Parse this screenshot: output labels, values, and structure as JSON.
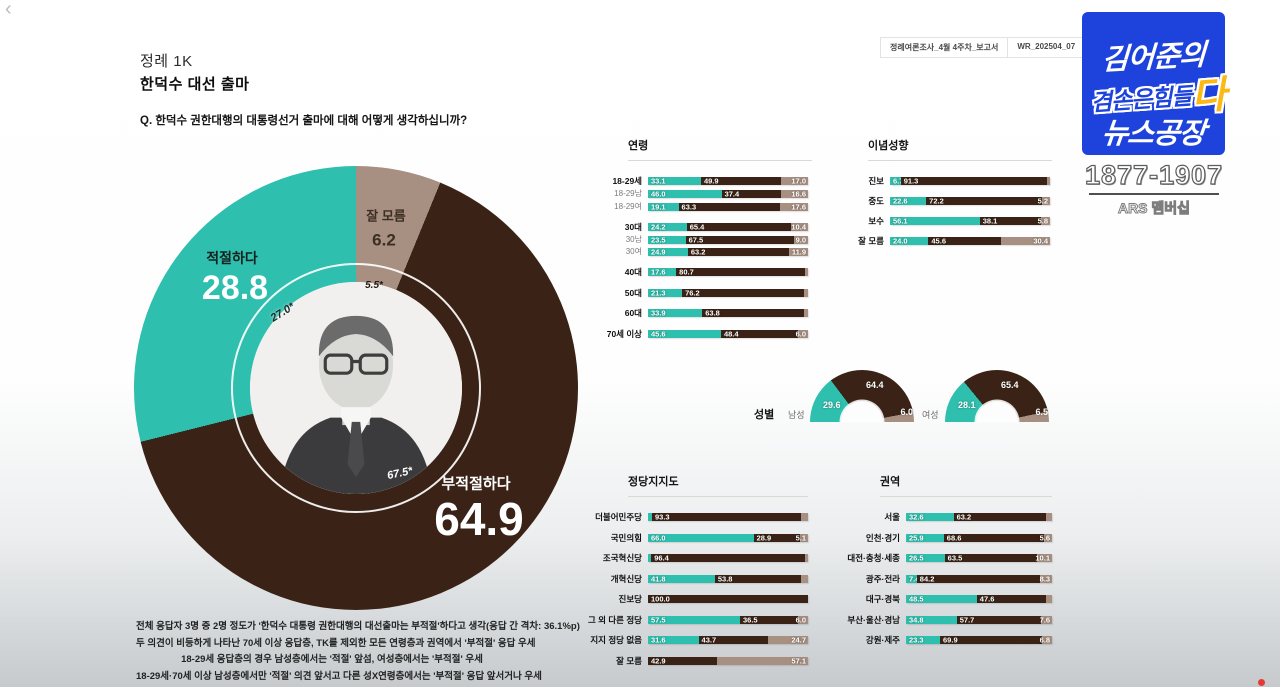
{
  "frame": {
    "back_icon": "‹",
    "report_tabs": [
      {
        "label": "정례여론조사_4월 4주차_보고서"
      },
      {
        "label": "WR_202504_07"
      }
    ]
  },
  "header": {
    "series": "정례 1K",
    "title": "한덕수 대선 출마",
    "question": "Q. 한덕수 권한대행의 대통령선거 출마에 대해 어떻게 생각하십니까?"
  },
  "colors": {
    "agree": "#2fbfae",
    "disagree": "#3a2316",
    "unsure": "#a78f81",
    "hole_bg": "#f2f1ef"
  },
  "chart_data": [
    {
      "id": "main_donut",
      "type": "pie",
      "title": "한덕수 대선 출마",
      "segments": [
        {
          "key": "agree",
          "label": "적절하다",
          "value": 28.8,
          "display": "28.8"
        },
        {
          "key": "disagree",
          "label": "부적절하다",
          "value": 64.9,
          "display": "64.9"
        },
        {
          "key": "unsure",
          "label": "잘 모름",
          "value": 6.2,
          "display": "6.2"
        }
      ],
      "inner_ring": {
        "agree": "27.0*",
        "disagree": "67.5*",
        "unsure": "5.5*"
      }
    },
    {
      "id": "age",
      "type": "bar",
      "title": "연령",
      "stacked": true,
      "series_names": [
        "적절하다",
        "부적절하다",
        "잘 모름"
      ],
      "rows": [
        {
          "label": "18-29세",
          "major": true,
          "gap": false,
          "values": [
            33.1,
            49.9,
            17.0
          ],
          "shown": [
            "33.1",
            "49.9",
            "17.0"
          ]
        },
        {
          "label": "18-29남",
          "major": false,
          "gap": false,
          "values": [
            46.0,
            37.4,
            16.6
          ],
          "shown": [
            "46.0",
            "37.4",
            "16.6"
          ]
        },
        {
          "label": "18-29여",
          "major": false,
          "gap": false,
          "values": [
            19.1,
            63.3,
            17.6
          ],
          "shown": [
            "19.1",
            "63.3",
            "17.6"
          ]
        },
        {
          "label": "30대",
          "major": true,
          "gap": true,
          "values": [
            24.2,
            65.4,
            10.4
          ],
          "shown": [
            "24.2",
            "65.4",
            "10.4"
          ]
        },
        {
          "label": "30남",
          "major": false,
          "gap": false,
          "values": [
            23.5,
            67.5,
            9.0
          ],
          "shown": [
            "23.5",
            "67.5",
            "9.0"
          ]
        },
        {
          "label": "30여",
          "major": false,
          "gap": false,
          "values": [
            24.9,
            63.2,
            11.9
          ],
          "shown": [
            "24.9",
            "63.2",
            "11.9"
          ]
        },
        {
          "label": "40대",
          "major": true,
          "gap": true,
          "values": [
            17.6,
            80.7,
            1.7
          ],
          "shown": [
            "17.6",
            "80.7",
            ""
          ]
        },
        {
          "label": "50대",
          "major": true,
          "gap": true,
          "values": [
            21.3,
            76.2,
            2.5
          ],
          "shown": [
            "21.3",
            "76.2",
            ""
          ]
        },
        {
          "label": "60대",
          "major": true,
          "gap": true,
          "values": [
            33.9,
            63.8,
            2.3
          ],
          "shown": [
            "33.9",
            "63.8",
            ""
          ]
        },
        {
          "label": "70세 이상",
          "major": true,
          "gap": true,
          "values": [
            45.6,
            48.4,
            6.0
          ],
          "shown": [
            "45.6",
            "48.4",
            "6.0"
          ]
        }
      ]
    },
    {
      "id": "ideology",
      "type": "bar",
      "title": "이념성향",
      "stacked": true,
      "series_names": [
        "적절하다",
        "부적절하다",
        "잘 모름"
      ],
      "rows": [
        {
          "label": "진보",
          "major": true,
          "gap": false,
          "values": [
            6.7,
            91.3,
            2.0
          ],
          "shown": [
            "6.7",
            "91.3",
            ""
          ]
        },
        {
          "label": "중도",
          "major": true,
          "gap": false,
          "values": [
            22.6,
            72.2,
            5.2
          ],
          "shown": [
            "22.6",
            "72.2",
            "5.2"
          ]
        },
        {
          "label": "보수",
          "major": true,
          "gap": false,
          "values": [
            56.1,
            38.1,
            5.8
          ],
          "shown": [
            "56.1",
            "38.1",
            "5.8"
          ]
        },
        {
          "label": "잘 모름",
          "major": true,
          "gap": false,
          "values": [
            24.0,
            45.6,
            30.4
          ],
          "shown": [
            "24.0",
            "45.6",
            "30.4"
          ]
        }
      ]
    },
    {
      "id": "gender",
      "type": "pie",
      "title": "성별",
      "charts": [
        {
          "label": "남성",
          "values": [
            29.6,
            64.4,
            6.0
          ],
          "shown": [
            "29.6",
            "64.4",
            "6.0"
          ]
        },
        {
          "label": "여성",
          "values": [
            28.1,
            65.4,
            6.5
          ],
          "shown": [
            "28.1",
            "65.4",
            "6.5"
          ]
        }
      ]
    },
    {
      "id": "party",
      "type": "bar",
      "title": "정당지지도",
      "stacked": true,
      "series_names": [
        "적절하다",
        "부적절하다",
        "잘 모름"
      ],
      "rows": [
        {
          "label": "더불어민주당",
          "major": true,
          "gap": false,
          "values": [
            2.5,
            93.3,
            4.2
          ],
          "shown": [
            "",
            "93.3",
            ""
          ]
        },
        {
          "label": "국민의힘",
          "major": true,
          "gap": false,
          "values": [
            66.0,
            28.9,
            5.1
          ],
          "shown": [
            "66.0",
            "28.9",
            "5.1"
          ]
        },
        {
          "label": "조국혁신당",
          "major": true,
          "gap": false,
          "values": [
            2.0,
            96.4,
            1.6
          ],
          "shown": [
            "",
            "96.4",
            ""
          ]
        },
        {
          "label": "개혁신당",
          "major": true,
          "gap": false,
          "values": [
            41.8,
            53.8,
            4.4
          ],
          "shown": [
            "41.8",
            "53.8",
            ""
          ]
        },
        {
          "label": "진보당",
          "major": true,
          "gap": false,
          "values": [
            0,
            100.0,
            0
          ],
          "shown": [
            "",
            "100.0",
            ""
          ]
        },
        {
          "label": "그 외 다른 정당",
          "major": true,
          "gap": false,
          "values": [
            57.5,
            36.5,
            6.0
          ],
          "shown": [
            "57.5",
            "36.5",
            "6.0"
          ]
        },
        {
          "label": "지지 정당 없음",
          "major": true,
          "gap": false,
          "values": [
            31.6,
            43.7,
            24.7
          ],
          "shown": [
            "31.6",
            "43.7",
            "24.7"
          ]
        },
        {
          "label": "잘 모름",
          "major": true,
          "gap": false,
          "values": [
            0,
            42.9,
            57.1
          ],
          "shown": [
            "",
            "42.9",
            "57.1"
          ]
        }
      ]
    },
    {
      "id": "region",
      "type": "bar",
      "title": "권역",
      "stacked": true,
      "series_names": [
        "적절하다",
        "부적절하다",
        "잘 모름"
      ],
      "rows": [
        {
          "label": "서울",
          "major": true,
          "gap": false,
          "values": [
            32.6,
            63.2,
            4.2
          ],
          "shown": [
            "32.6",
            "63.2",
            ""
          ]
        },
        {
          "label": "인천·경기",
          "major": true,
          "gap": false,
          "values": [
            25.9,
            68.6,
            5.6
          ],
          "shown": [
            "25.9",
            "68.6",
            "5.6"
          ]
        },
        {
          "label": "대전·충청·세종",
          "major": true,
          "gap": false,
          "values": [
            26.5,
            63.5,
            10.1
          ],
          "shown": [
            "26.5",
            "63.5",
            "10.1"
          ]
        },
        {
          "label": "광주·전라",
          "major": true,
          "gap": false,
          "values": [
            7.4,
            84.2,
            8.3
          ],
          "shown": [
            "7.4",
            "84.2",
            "8.3"
          ]
        },
        {
          "label": "대구·경북",
          "major": true,
          "gap": false,
          "values": [
            48.5,
            47.6,
            3.9
          ],
          "shown": [
            "48.5",
            "47.6",
            ""
          ]
        },
        {
          "label": "부산·울산·경남",
          "major": true,
          "gap": false,
          "values": [
            34.8,
            57.7,
            7.6
          ],
          "shown": [
            "34.8",
            "57.7",
            "7.6"
          ]
        },
        {
          "label": "강원·제주",
          "major": true,
          "gap": false,
          "values": [
            23.3,
            69.9,
            6.8
          ],
          "shown": [
            "23.3",
            "69.9",
            "6.8"
          ]
        }
      ]
    }
  ],
  "footnotes": [
    "전체 응답자 3명 중 2명 정도가 '한덕수 대통령 권한대행의 대선출마는 부적절'하다고 생각(응답 간 격차: 36.1%p)",
    "두 의견이 비등하게 나타난 70세 이상 응답층, TK를 제외한 모든 연령층과 권역에서 '부적절' 응답 우세",
    "18-29세 응답층의 경우 남성층에서는 '적절' 앞섬, 여성층에서는 '부적절' 우세",
    "18-29세·70세 이상 남성층에서만 '적절' 의견 앞서고 다른 성X연령층에서는 '부적절' 응답 앞서거나 우세"
  ],
  "sidebar": {
    "logo_line1": "김어준의",
    "logo_line2_main": "겸손은힘들",
    "logo_line2_accent": "다",
    "logo_line3": "뉴스공장",
    "phone": "1877-1907",
    "membership": "ARS 멤버십"
  }
}
